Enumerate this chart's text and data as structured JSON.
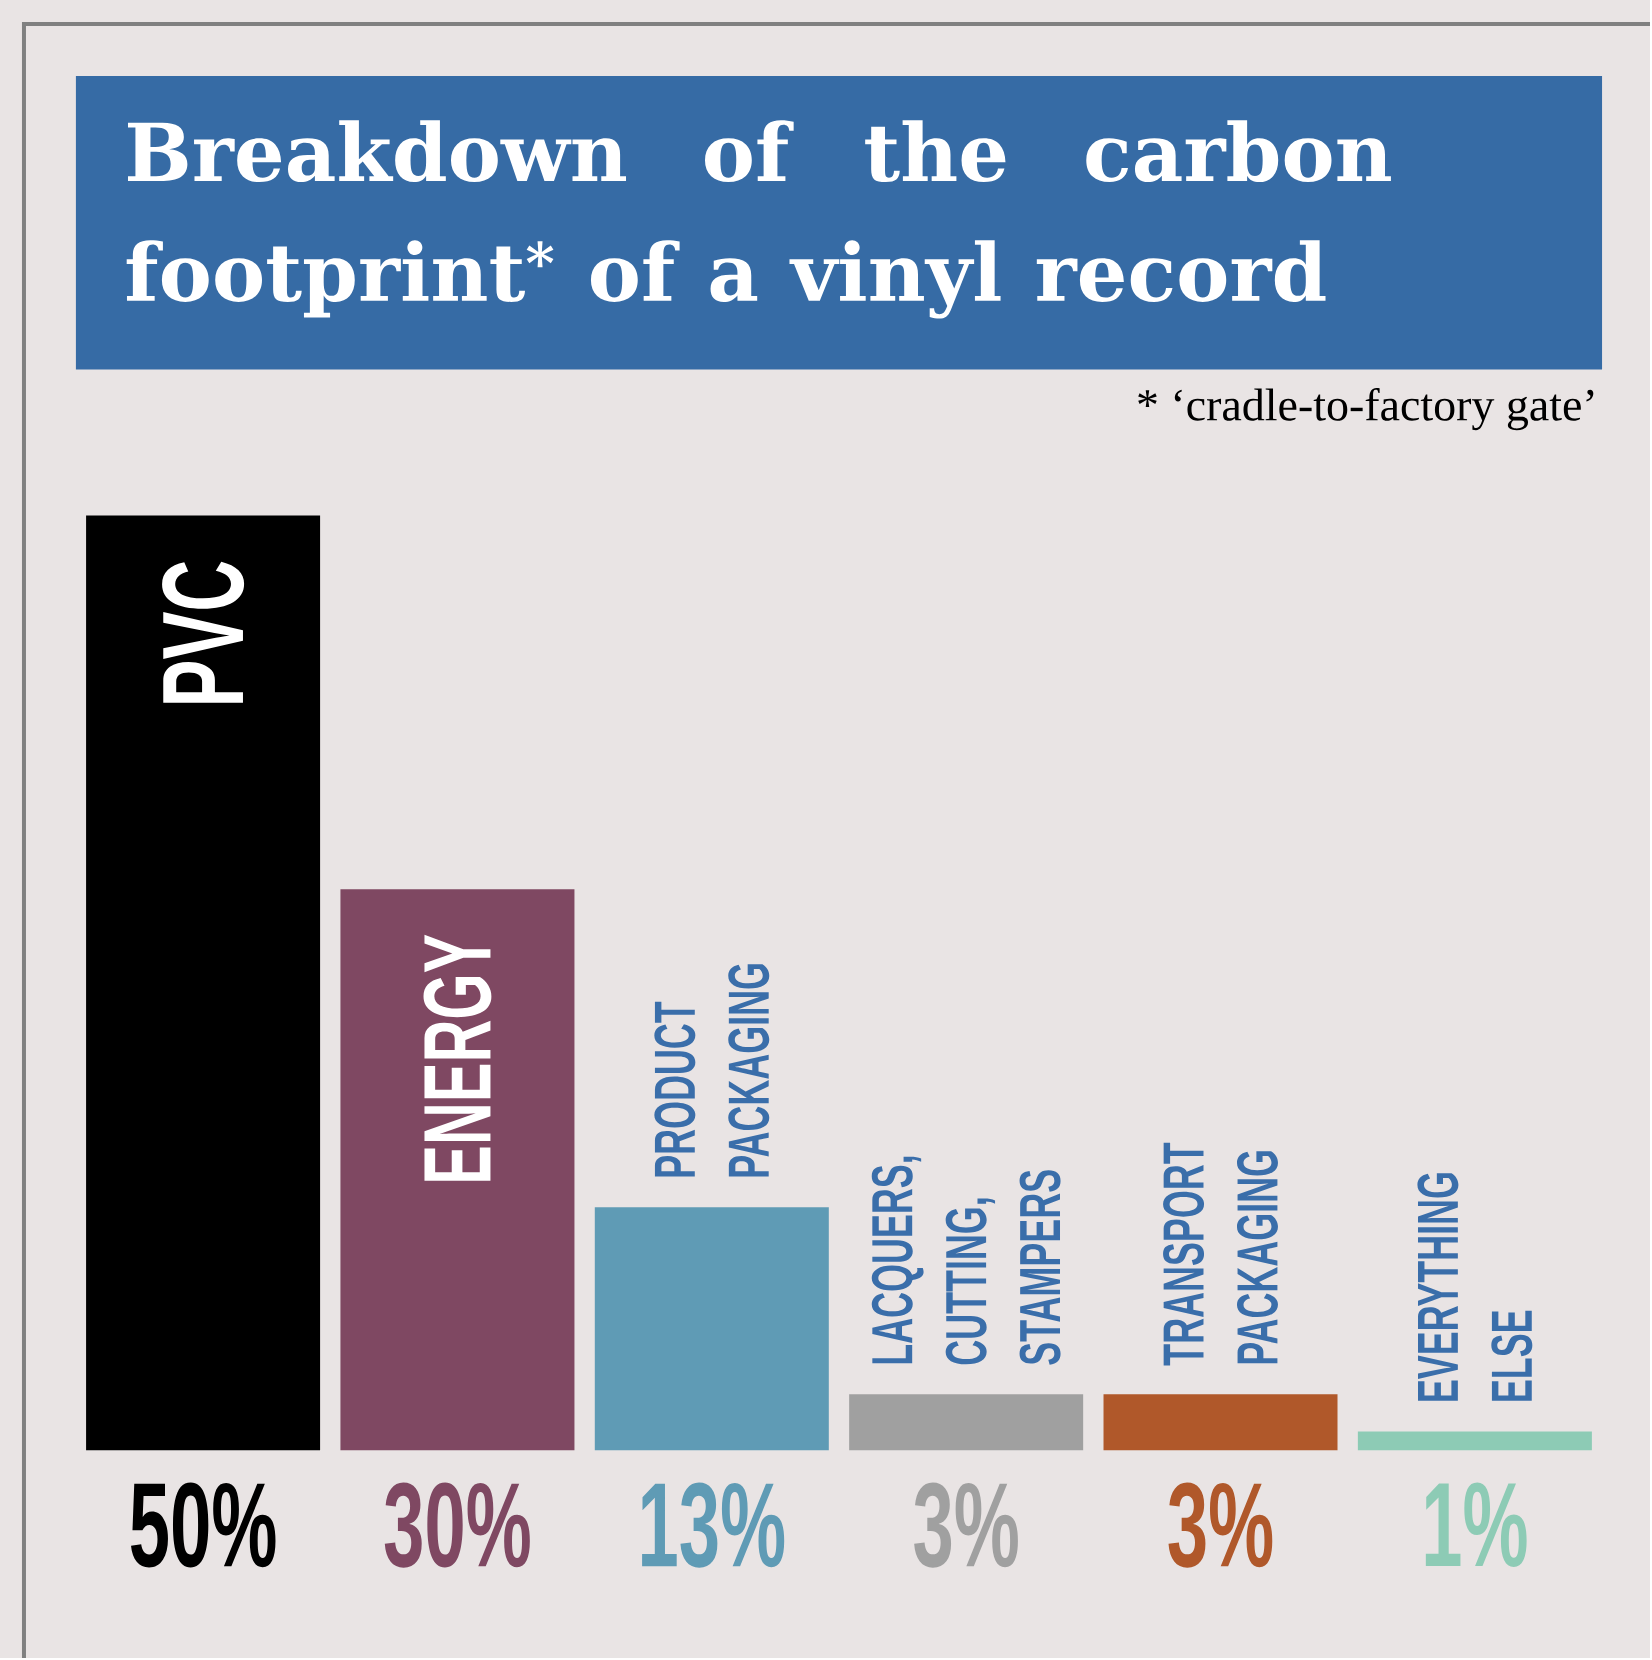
{
  "chart_data": {
    "type": "bar",
    "title": "Breakdown of the carbon footprint$^{*}$ of a vinyl record",
    "annotations": [
      "* ‘cradle-to-factory gate’"
    ],
    "categories": [
      "PVC",
      "ENERGY",
      "PRODUCT PACKAGING",
      "LACQUERS, CUTTING, STAMPERS",
      "TRANSPORT PACKAGING",
      "EVERYTHING ELSE"
    ],
    "values": [
      50,
      30,
      13,
      3,
      3,
      1
    ],
    "value_labels": [
      "50%",
      "30%",
      "13%",
      "3%",
      "3%",
      "1%"
    ],
    "colors": [
      "#000000",
      "#7f4862",
      "#5f9bb5",
      "#a0a0a0",
      "#b0582a",
      "#8dcbb5"
    ]
  }
}
